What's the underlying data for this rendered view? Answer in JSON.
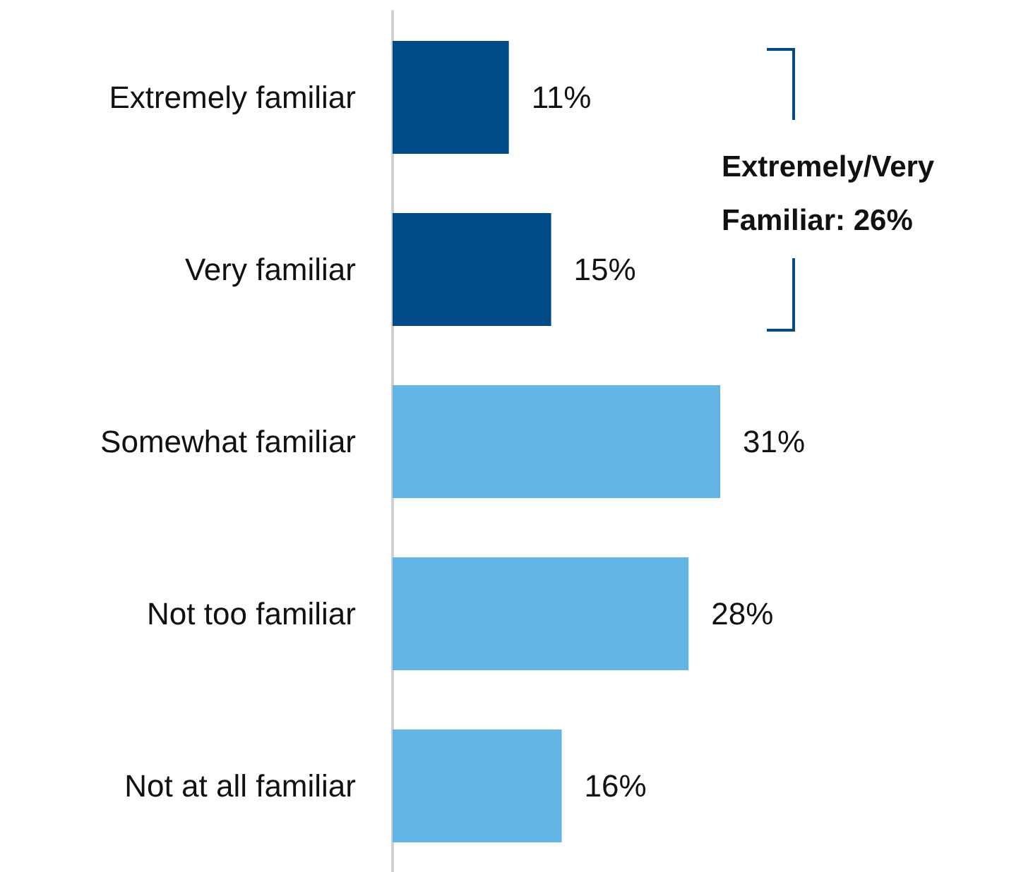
{
  "chart_data": {
    "type": "bar",
    "orientation": "horizontal",
    "categories": [
      "Extremely familiar",
      "Very familiar",
      "Somewhat familiar",
      "Not too familiar",
      "Not at all familiar"
    ],
    "values": [
      11,
      15,
      31,
      28,
      16
    ],
    "colors": [
      "#004b87",
      "#004b87",
      "#62b5e5",
      "#62b5e5",
      "#62b5e5"
    ],
    "value_labels": [
      "11%",
      "15%",
      "31%",
      "28%",
      "16%"
    ],
    "tick_labels": "y",
    "annotations": [
      "Extremely/Very Familiar: 26%"
    ]
  }
}
